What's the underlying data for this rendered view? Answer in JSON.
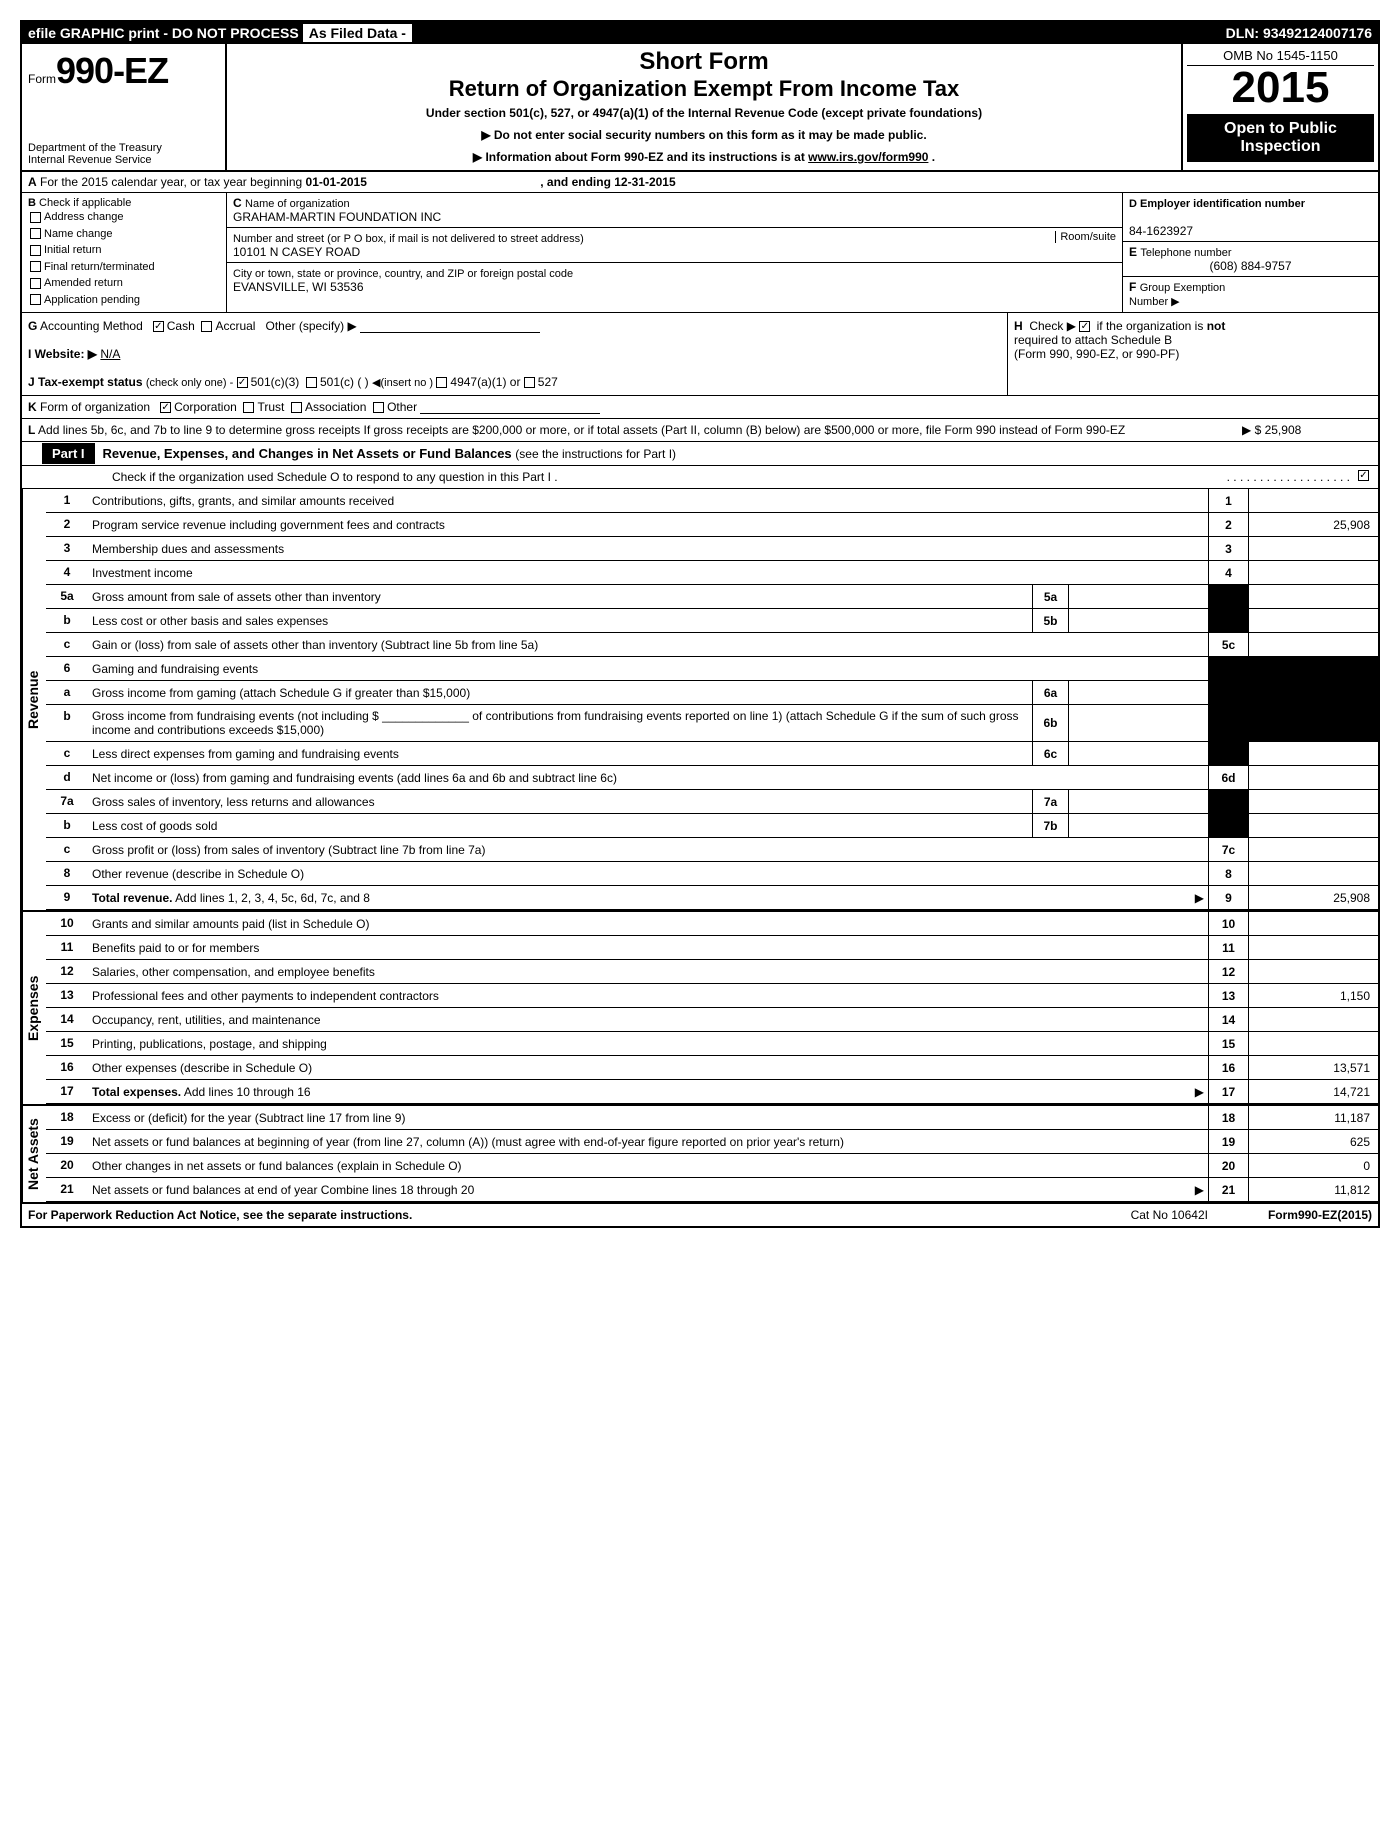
{
  "topbar": {
    "efile": "efile GRAPHIC print - DO NOT PROCESS",
    "asfiled": "As Filed Data -",
    "dln_label": "DLN:",
    "dln": "93492124007176"
  },
  "header": {
    "form_prefix": "Form",
    "form_number": "990-EZ",
    "dept1": "Department of the Treasury",
    "dept2": "Internal Revenue Service",
    "short_form": "Short Form",
    "title": "Return of Organization Exempt From Income Tax",
    "under": "Under section 501(c), 527, or 4947(a)(1) of the Internal Revenue Code (except private foundations)",
    "blurb1": "▶ Do not enter social security numbers on this form as it may be made public.",
    "blurb2_pre": "▶ Information about Form 990-EZ and its instructions is at ",
    "blurb2_link": "www.irs.gov/form990",
    "blurb2_post": ".",
    "omb": "OMB No  1545-1150",
    "year": "2015",
    "open1": "Open to Public",
    "open2": "Inspection"
  },
  "row_a": {
    "label_a": "A",
    "text1": "For the 2015 calendar year, or tax year beginning ",
    "begin": "01-01-2015",
    "text2": ", and ending ",
    "end": "12-31-2015"
  },
  "col_b": {
    "head_b": "B",
    "head_text": "Check if applicable",
    "items": [
      "Address change",
      "Name change",
      "Initial return",
      "Final return/terminated",
      "Amended return",
      "Application pending"
    ]
  },
  "col_c": {
    "c_label": "C",
    "c_text": "Name of organization",
    "org": "GRAHAM-MARTIN FOUNDATION INC",
    "addr_label": "Number and street (or P  O  box, if mail is not delivered to street address)",
    "room_label": "Room/suite",
    "addr": "10101 N CASEY ROAD",
    "city_label": "City or town, state or province, country, and ZIP or foreign postal code",
    "city": "EVANSVILLE, WI  53536"
  },
  "col_d": {
    "d_label": "D Employer identification number",
    "ein": "84-1623927",
    "e_label": "E",
    "e_text": "Telephone number",
    "phone": "(608) 884-9757",
    "f_label": "F",
    "f_text": "Group Exemption",
    "f_text2": "Number  ▶"
  },
  "row_g": {
    "g_label": "G",
    "g_text": "Accounting Method",
    "cash": "Cash",
    "accrual": "Accrual",
    "other": "Other (specify) ▶",
    "i_label": "I Website: ▶",
    "i_val": "N/A",
    "j_label": "J Tax-exempt status",
    "j_paren": "(check only one) -",
    "j_501c3": "501(c)(3)",
    "j_501c": "501(c) (   )",
    "j_insert": "◀(insert no )",
    "j_4947": "4947(a)(1) or",
    "j_527": "527"
  },
  "row_h": {
    "h_label": "H",
    "h_text1": "Check ▶",
    "h_text2": "if the organization is",
    "h_not": "not",
    "h_text3": "required to attach Schedule B",
    "h_text4": "(Form 990, 990-EZ, or 990-PF)"
  },
  "row_k": {
    "k_label": "K",
    "k_text": "Form of organization",
    "corp": "Corporation",
    "trust": "Trust",
    "assoc": "Association",
    "other": "Other"
  },
  "row_l": {
    "l_label": "L",
    "l_text": "Add lines 5b, 6c, and 7b to line 9 to determine gross receipts  If gross receipts are $200,000 or more, or if total assets (Part II, column (B) below) are $500,000 or more, file Form 990 instead of Form 990-EZ",
    "l_arrow": "▶",
    "l_val": "$ 25,908"
  },
  "part1": {
    "badge": "Part I",
    "title": "Revenue, Expenses, and Changes in Net Assets or Fund Balances",
    "sub": " (see the instructions for Part I)",
    "check_line": "Check if the organization used Schedule O to respond to any question in this Part I ."
  },
  "sections": {
    "revenue": "Revenue",
    "expenses": "Expenses",
    "netassets": "Net Assets"
  },
  "lines": {
    "l1": {
      "n": "1",
      "d": "Contributions, gifts, grants, and similar amounts received",
      "rn": "1",
      "v": ""
    },
    "l2": {
      "n": "2",
      "d": "Program service revenue including government fees and contracts",
      "rn": "2",
      "v": "25,908"
    },
    "l3": {
      "n": "3",
      "d": "Membership dues and assessments",
      "rn": "3",
      "v": ""
    },
    "l4": {
      "n": "4",
      "d": "Investment income",
      "rn": "4",
      "v": ""
    },
    "l5a": {
      "n": "5a",
      "d": "Gross amount from sale of assets other than inventory",
      "sn": "5a"
    },
    "l5b": {
      "n": "b",
      "d": "Less  cost or other basis and sales expenses",
      "sn": "5b"
    },
    "l5c": {
      "n": "c",
      "d": "Gain or (loss) from sale of assets other than inventory (Subtract line 5b from line 5a)",
      "rn": "5c",
      "v": ""
    },
    "l6": {
      "n": "6",
      "d": "Gaming and fundraising events"
    },
    "l6a": {
      "n": "a",
      "d": "Gross income from gaming (attach Schedule G if greater than $15,000)",
      "sn": "6a"
    },
    "l6b": {
      "n": "b",
      "d": "Gross income from fundraising events (not including $ _____________ of contributions from fundraising events reported on line 1) (attach Schedule G if the sum of such gross income and contributions exceeds $15,000)",
      "sn": "6b"
    },
    "l6c": {
      "n": "c",
      "d": "Less  direct expenses from gaming and fundraising events",
      "sn": "6c"
    },
    "l6d": {
      "n": "d",
      "d": "Net income or (loss) from gaming and fundraising events (add lines 6a and 6b and subtract line 6c)",
      "rn": "6d",
      "v": ""
    },
    "l7a": {
      "n": "7a",
      "d": "Gross sales of inventory, less returns and allowances",
      "sn": "7a"
    },
    "l7b": {
      "n": "b",
      "d": "Less  cost of goods sold",
      "sn": "7b"
    },
    "l7c": {
      "n": "c",
      "d": "Gross profit or (loss) from sales of inventory (Subtract line 7b from line 7a)",
      "rn": "7c",
      "v": ""
    },
    "l8": {
      "n": "8",
      "d": "Other revenue (describe in Schedule O)",
      "rn": "8",
      "v": ""
    },
    "l9": {
      "n": "9",
      "d": "Total revenue. Add lines 1, 2, 3, 4, 5c, 6d, 7c, and 8",
      "rn": "9",
      "v": "25,908",
      "bold": true,
      "arrow": true
    },
    "l10": {
      "n": "10",
      "d": "Grants and similar amounts paid (list in Schedule O)",
      "rn": "10",
      "v": ""
    },
    "l11": {
      "n": "11",
      "d": "Benefits paid to or for members",
      "rn": "11",
      "v": ""
    },
    "l12": {
      "n": "12",
      "d": "Salaries, other compensation, and employee benefits",
      "rn": "12",
      "v": ""
    },
    "l13": {
      "n": "13",
      "d": "Professional fees and other payments to independent contractors",
      "rn": "13",
      "v": "1,150"
    },
    "l14": {
      "n": "14",
      "d": "Occupancy, rent, utilities, and maintenance",
      "rn": "14",
      "v": ""
    },
    "l15": {
      "n": "15",
      "d": "Printing, publications, postage, and shipping",
      "rn": "15",
      "v": ""
    },
    "l16": {
      "n": "16",
      "d": "Other expenses (describe in Schedule O)",
      "rn": "16",
      "v": "13,571"
    },
    "l17": {
      "n": "17",
      "d": "Total expenses. Add lines 10 through 16",
      "rn": "17",
      "v": "14,721",
      "bold": true,
      "arrow": true
    },
    "l18": {
      "n": "18",
      "d": "Excess or (deficit) for the year (Subtract line 17 from line 9)",
      "rn": "18",
      "v": "11,187"
    },
    "l19": {
      "n": "19",
      "d": "Net assets or fund balances at beginning of year (from line 27, column (A)) (must agree with end-of-year figure reported on prior year's return)",
      "rn": "19",
      "v": "625"
    },
    "l20": {
      "n": "20",
      "d": "Other changes in net assets or fund balances (explain in Schedule O)",
      "rn": "20",
      "v": "0"
    },
    "l21": {
      "n": "21",
      "d": "Net assets or fund balances at end of year  Combine lines 18 through 20",
      "rn": "21",
      "v": "11,812",
      "arrow": true
    }
  },
  "footer": {
    "left": "For Paperwork Reduction Act Notice, see the separate instructions.",
    "mid": "Cat No  10642I",
    "right_pre": "Form",
    "right_form": "990-EZ",
    "right_year": "(2015)"
  }
}
